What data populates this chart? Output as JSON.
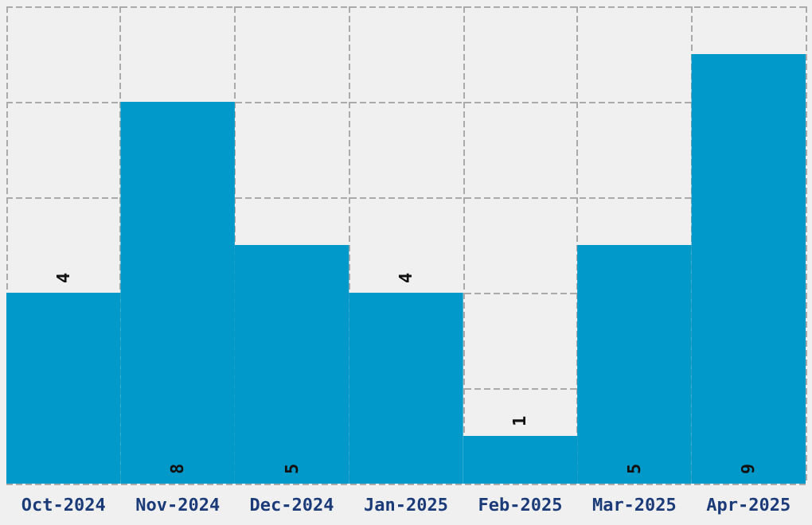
{
  "chart_data": {
    "type": "bar",
    "categories": [
      "Oct-2024",
      "Nov-2024",
      "Dec-2024",
      "Jan-2025",
      "Feb-2025",
      "Mar-2025",
      "Apr-2025"
    ],
    "values": [
      4,
      8,
      5,
      4,
      1,
      5,
      9
    ],
    "color": "#0099c9",
    "data_labels": true,
    "grid": true
  }
}
